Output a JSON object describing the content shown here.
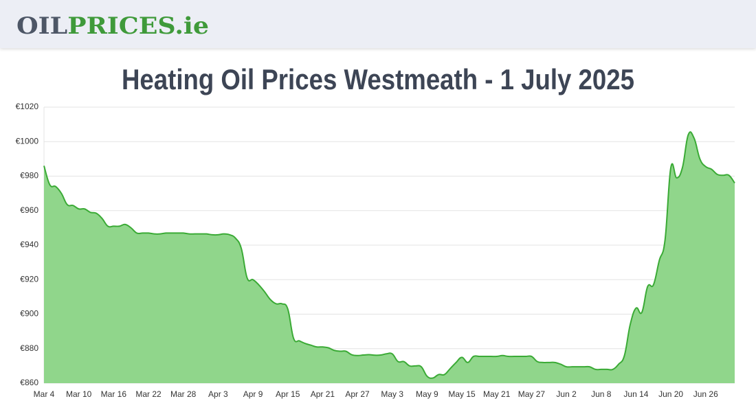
{
  "header": {
    "logo": [
      "OIL",
      "PRICES.ie"
    ]
  },
  "chart_data": {
    "type": "area",
    "title": "Heating Oil Prices Westmeath - 1 July 2025",
    "color": "#3aaa35",
    "fill": "#90d68b",
    "grid": true,
    "categories": [
      "Mar 4",
      null,
      null,
      null,
      null,
      null,
      "Mar 10",
      null,
      null,
      null,
      null,
      null,
      "Mar 16",
      null,
      null,
      null,
      null,
      null,
      "Mar 22",
      null,
      null,
      null,
      null,
      null,
      "Mar 28",
      null,
      null,
      null,
      null,
      null,
      "Apr 3",
      null,
      null,
      null,
      null,
      null,
      "Apr 9",
      null,
      null,
      null,
      null,
      null,
      "Apr 15",
      null,
      null,
      null,
      null,
      null,
      "Apr 21",
      null,
      null,
      null,
      null,
      null,
      "Apr 27",
      null,
      null,
      null,
      null,
      null,
      "May 3",
      null,
      null,
      null,
      null,
      null,
      "May 9",
      null,
      null,
      null,
      null,
      null,
      "May 15",
      null,
      null,
      null,
      null,
      null,
      "May 21",
      null,
      null,
      null,
      null,
      null,
      "May 27",
      null,
      null,
      null,
      null,
      null,
      "Jun 2",
      null,
      null,
      null,
      null,
      null,
      "Jun 8",
      null,
      null,
      null,
      null,
      null,
      "Jun 14",
      null,
      null,
      null,
      null,
      null,
      "Jun 20",
      null,
      null,
      null,
      null,
      null,
      "Jun 26",
      null,
      null,
      null,
      null,
      null
    ],
    "values": [
      986,
      975,
      974,
      970,
      963.5,
      963,
      961,
      961,
      959,
      958.5,
      955.5,
      951,
      951,
      951,
      952,
      950,
      947,
      947,
      947,
      946.5,
      946.5,
      947,
      947,
      947,
      947,
      946.5,
      946.5,
      946.5,
      946.5,
      946,
      946,
      946.5,
      946,
      944,
      938,
      921,
      920,
      917,
      913,
      908.5,
      906,
      906,
      903,
      886,
      884.5,
      883,
      882,
      881,
      881,
      880.5,
      879,
      878.5,
      878.5,
      876.5,
      876,
      876.3,
      876.5,
      876.2,
      876.3,
      877,
      877,
      872.5,
      872.5,
      870,
      870,
      869.5,
      864,
      863,
      865,
      865,
      868.5,
      872,
      875,
      872,
      875.5,
      875.5,
      875.5,
      875.5,
      875.5,
      876,
      875.5,
      875.5,
      875.5,
      875.5,
      875.5,
      872.5,
      872,
      872,
      872,
      871,
      869.5,
      869.5,
      869.5,
      869.5,
      869.5,
      868,
      868,
      868,
      868,
      871,
      876,
      894,
      903.5,
      901,
      916,
      917,
      931,
      943,
      985,
      979,
      985,
      1004,
      1002,
      990,
      985.5,
      984,
      981,
      980.5,
      980.5,
      976
    ],
    "ylim": [
      860,
      1020
    ],
    "yticks": [
      {
        "value": 860,
        "label": "€860"
      },
      {
        "value": 880,
        "label": "€880"
      },
      {
        "value": 900,
        "label": "€900"
      },
      {
        "value": 920,
        "label": "€920"
      },
      {
        "value": 940,
        "label": "€940"
      },
      {
        "value": 960,
        "label": "€960"
      },
      {
        "value": 980,
        "label": "€980"
      },
      {
        "value": 1000,
        "label": "€1000"
      },
      {
        "value": 1020,
        "label": "€1020"
      }
    ]
  }
}
